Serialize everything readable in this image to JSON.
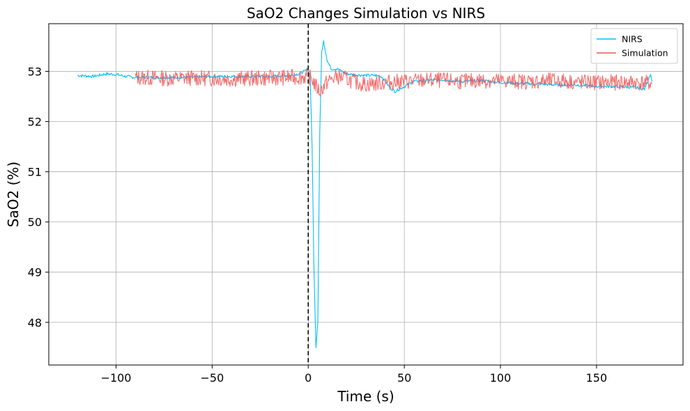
{
  "chart_data": {
    "type": "line",
    "title": "SaO2 Changes Simulation vs NIRS",
    "xlabel": "Time (s)",
    "ylabel": "SaO2 (%)",
    "xlim": [
      -135,
      195
    ],
    "ylim": [
      47.15,
      53.95
    ],
    "xticks": [
      -100,
      -50,
      0,
      50,
      100,
      150
    ],
    "xtick_labels": [
      "−100",
      "−50",
      "0",
      "50",
      "100",
      "150"
    ],
    "yticks": [
      48,
      49,
      50,
      51,
      52,
      53
    ],
    "ytick_labels": [
      "48",
      "49",
      "50",
      "51",
      "52",
      "53"
    ],
    "grid": true,
    "legend_position": "top-right",
    "event_line": {
      "x": 0,
      "style": "dashed",
      "color": "#000000"
    },
    "series": [
      {
        "name": "NIRS",
        "color": "#00bfff",
        "x": [
          -120,
          -112,
          -105,
          -100,
          -95,
          -90,
          -80,
          -70,
          -60,
          -50,
          -40,
          -30,
          -20,
          -10,
          -5,
          -2,
          0,
          1,
          2,
          3,
          4,
          5,
          6,
          7,
          8,
          10,
          12,
          15,
          20,
          25,
          30,
          35,
          38,
          42,
          45,
          50,
          55,
          60,
          70,
          80,
          90,
          100,
          110,
          120,
          130,
          140,
          150,
          160,
          170,
          175,
          178,
          179
        ],
        "y": [
          52.92,
          52.9,
          52.95,
          52.94,
          52.9,
          52.88,
          52.88,
          52.88,
          52.88,
          52.9,
          52.9,
          52.9,
          52.9,
          52.92,
          52.95,
          53.0,
          53.05,
          52.9,
          51.5,
          49.0,
          47.5,
          48.0,
          51.8,
          53.4,
          53.6,
          53.2,
          53.05,
          53.05,
          52.95,
          52.93,
          52.92,
          52.92,
          52.9,
          52.7,
          52.6,
          52.7,
          52.8,
          52.82,
          52.83,
          52.8,
          52.82,
          52.78,
          52.76,
          52.75,
          52.73,
          52.73,
          52.7,
          52.7,
          52.68,
          52.65,
          52.95,
          52.8
        ]
      },
      {
        "name": "Simulation",
        "color": "#f05555",
        "x": [
          -90,
          -80,
          -70,
          -60,
          -50,
          -40,
          -30,
          -20,
          -10,
          0,
          2,
          4,
          6,
          8,
          10,
          15,
          20,
          25,
          30,
          40,
          50,
          60,
          70,
          80,
          90,
          100,
          110,
          120,
          130,
          140,
          150,
          160,
          170,
          179
        ],
        "y": [
          52.88,
          52.87,
          52.86,
          52.87,
          52.86,
          52.85,
          52.86,
          52.87,
          52.88,
          52.9,
          52.85,
          52.7,
          52.6,
          52.7,
          52.8,
          52.9,
          52.85,
          52.78,
          52.74,
          52.78,
          52.8,
          52.82,
          52.82,
          52.8,
          52.82,
          52.81,
          52.8,
          52.8,
          52.82,
          52.78,
          52.78,
          52.78,
          52.78,
          52.76
        ]
      }
    ]
  }
}
